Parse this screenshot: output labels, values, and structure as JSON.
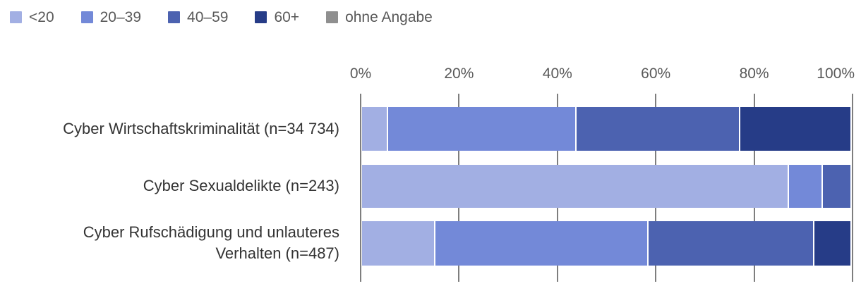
{
  "chart_data": {
    "type": "bar",
    "orientation": "horizontal",
    "stacked": true,
    "title": "",
    "xlabel": "",
    "ylabel": "",
    "xlim": [
      0,
      100
    ],
    "x_ticks": [
      "0%",
      "20%",
      "40%",
      "60%",
      "80%",
      "100%"
    ],
    "grid": "vertical gridline ticks at 20% intervals, gray",
    "legend_position": "top-left",
    "categories": [
      "Cyber Wirtschaftskriminalität (n=34 734)",
      "Cyber Sexualdelikte (n=243)",
      "Cyber Rufschädigung und unlauteres Verhalten (n=487)"
    ],
    "category_lines": [
      [
        "Cyber Wirtschaftskriminalität (n=34 734)"
      ],
      [
        "Cyber Sexualdelikte (n=243)"
      ],
      [
        "Cyber Rufschädigung und unlauteres",
        "Verhalten (n=487)"
      ]
    ],
    "series": [
      {
        "name": "<20",
        "color": "#a2afe3",
        "values": [
          5.4,
          87.4,
          15.0
        ]
      },
      {
        "name": "20–39",
        "color": "#7389d8",
        "values": [
          38.6,
          7.0,
          43.7
        ]
      },
      {
        "name": "40–59",
        "color": "#4c62b0",
        "values": [
          33.5,
          5.6,
          33.9
        ]
      },
      {
        "name": "60+",
        "color": "#263c87",
        "values": [
          22.5,
          0,
          7.4
        ]
      },
      {
        "name": "ohne Angabe",
        "color": "#8f8f8f",
        "values": [
          0,
          0,
          0
        ]
      }
    ]
  },
  "colors": {
    "axis_text": "#595959",
    "legend_text": "#595959",
    "category_text": "#333333",
    "gridline": "#7e7e7e",
    "background": "#ffffff"
  }
}
